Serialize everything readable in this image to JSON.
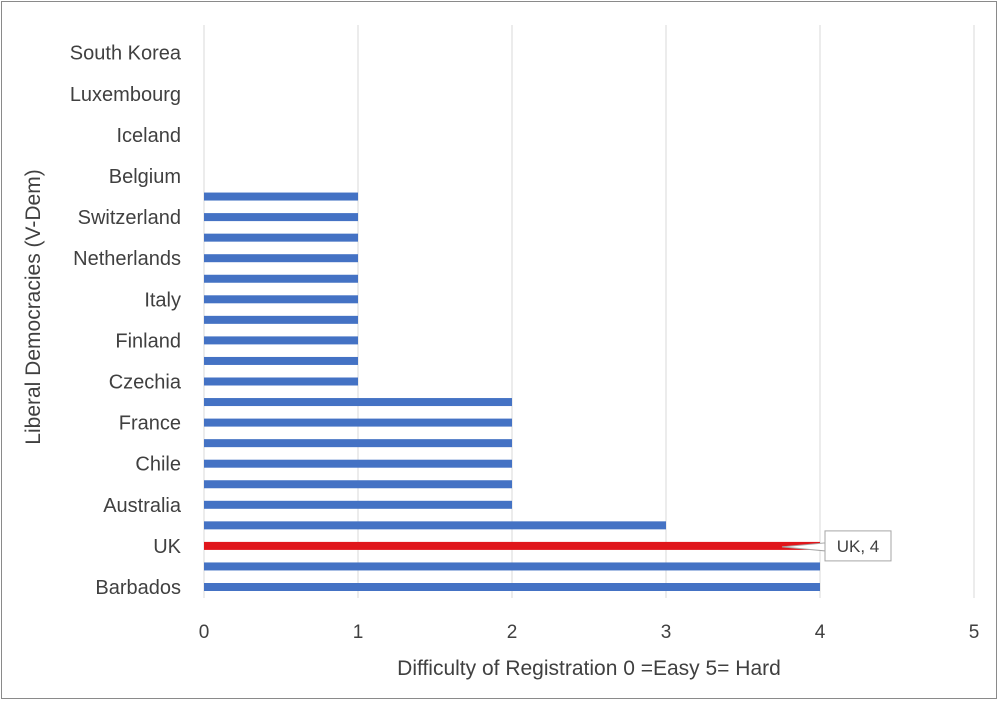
{
  "chart_data": {
    "type": "bar",
    "orientation": "horizontal",
    "xlabel": "Difficulty of Registration 0 =Easy 5= Hard",
    "ylabel": "Liberal Democracies (V-Dem)",
    "xlim": [
      0,
      5
    ],
    "xticks": [
      "0",
      "1",
      "2",
      "3",
      "4",
      "5"
    ],
    "grid": "vertical",
    "categories": [
      "Barbados",
      "",
      "UK",
      "",
      "Australia",
      "",
      "Chile",
      "",
      "France",
      "",
      "Czechia",
      "",
      "Finland",
      "",
      "Italy",
      "",
      "Netherlands",
      "",
      "Switzerland",
      "",
      "Belgium",
      "",
      "Iceland",
      "",
      "Luxembourg",
      "",
      "South Korea"
    ],
    "values": [
      4,
      4,
      4,
      3,
      2,
      2,
      2,
      2,
      2,
      2,
      1,
      1,
      1,
      1,
      1,
      1,
      1,
      1,
      1,
      1,
      0,
      0,
      0,
      0,
      0,
      0,
      0
    ],
    "highlight_index": 2,
    "colors": {
      "default": "#4472C4",
      "highlight": "#E0161B",
      "grid": "#D9D9D9",
      "text": "#404040"
    },
    "annotation": {
      "text": "UK, 4",
      "category_index": 2,
      "value": 4
    }
  }
}
